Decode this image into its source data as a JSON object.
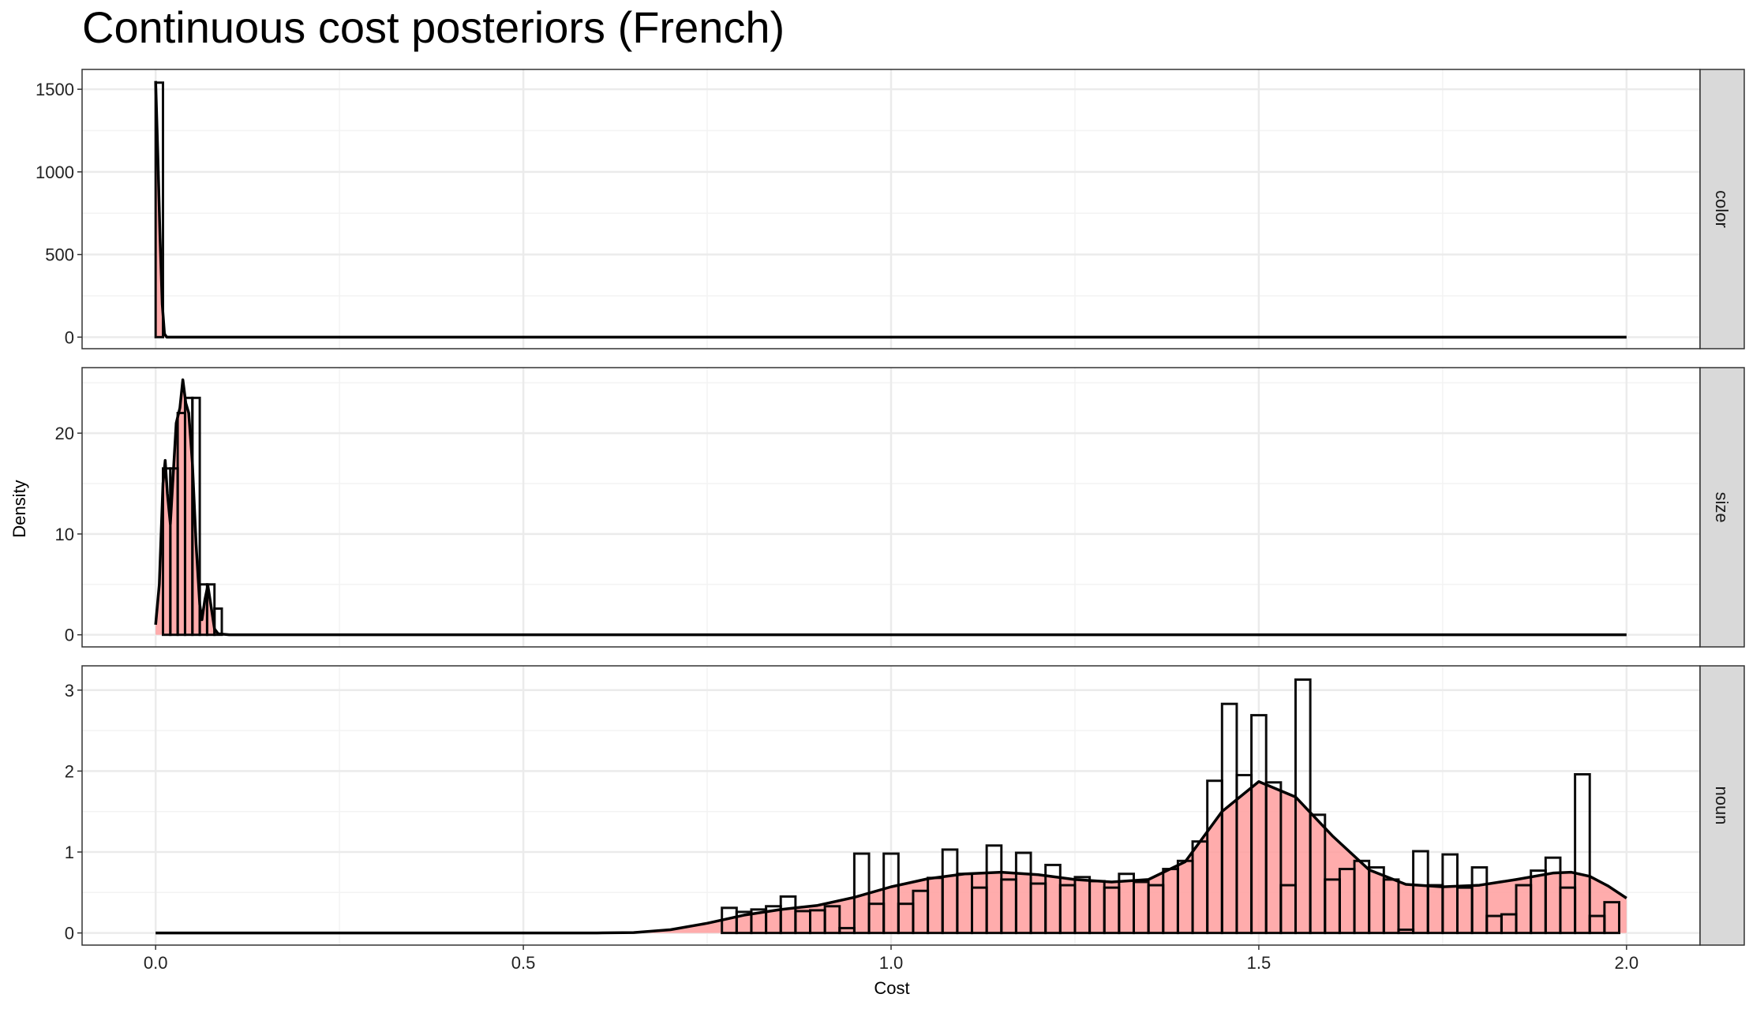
{
  "chart_data": {
    "type": "histogram-density",
    "title": "Continuous cost posteriors (French)",
    "xlabel": "Cost",
    "ylabel": "Density",
    "xlim": [
      -0.1,
      2.1
    ],
    "x_ticks": [
      0.0,
      0.5,
      1.0,
      1.5,
      2.0
    ],
    "x_tick_labels": [
      "0.0",
      "0.5",
      "1.0",
      "1.5",
      "2.0"
    ],
    "grid": true,
    "colors": {
      "fill": "#ff9e9e",
      "hist_outline": "#000000",
      "density_line": "#000000",
      "strip_bg": "#d9d9d9",
      "grid": "#ebebeb"
    },
    "facets": [
      {
        "label": "color",
        "ylim": [
          -70,
          1620
        ],
        "y_ticks": [
          0,
          500,
          1000,
          1500
        ],
        "y_tick_labels": [
          "0",
          "500",
          "1000",
          "1500"
        ],
        "bin_width": 0.01,
        "hist": [
          {
            "x": 0.0,
            "y": 1540
          }
        ],
        "density": [
          [
            0.0,
            1550
          ],
          [
            0.003,
            1100
          ],
          [
            0.006,
            600
          ],
          [
            0.009,
            200
          ],
          [
            0.012,
            20
          ],
          [
            0.015,
            0
          ],
          [
            2.0,
            0
          ]
        ]
      },
      {
        "label": "size",
        "ylim": [
          -1.2,
          26.5
        ],
        "y_ticks": [
          0,
          10,
          20
        ],
        "y_tick_labels": [
          "0",
          "10",
          "20"
        ],
        "bin_width": 0.01,
        "hist": [
          {
            "x": 0.01,
            "y": 16.5
          },
          {
            "x": 0.02,
            "y": 16.5
          },
          {
            "x": 0.03,
            "y": 22.0
          },
          {
            "x": 0.04,
            "y": 23.5
          },
          {
            "x": 0.05,
            "y": 23.5
          },
          {
            "x": 0.06,
            "y": 5.0
          },
          {
            "x": 0.07,
            "y": 5.0
          },
          {
            "x": 0.08,
            "y": 2.6
          }
        ],
        "density": [
          [
            0.0,
            1.0
          ],
          [
            0.005,
            5
          ],
          [
            0.01,
            15
          ],
          [
            0.013,
            17.3
          ],
          [
            0.016,
            14
          ],
          [
            0.02,
            11
          ],
          [
            0.024,
            16
          ],
          [
            0.028,
            21
          ],
          [
            0.033,
            22.5
          ],
          [
            0.037,
            25.3
          ],
          [
            0.041,
            23
          ],
          [
            0.045,
            22
          ],
          [
            0.05,
            17
          ],
          [
            0.055,
            9
          ],
          [
            0.06,
            3
          ],
          [
            0.063,
            1.5
          ],
          [
            0.067,
            3.5
          ],
          [
            0.071,
            4.9
          ],
          [
            0.075,
            3
          ],
          [
            0.08,
            0.6
          ],
          [
            0.085,
            0.1
          ],
          [
            0.1,
            0
          ],
          [
            2.0,
            0
          ]
        ]
      },
      {
        "label": "noun",
        "ylim": [
          -0.15,
          3.3
        ],
        "y_ticks": [
          0,
          1,
          2,
          3
        ],
        "y_tick_labels": [
          "0",
          "1",
          "2",
          "3"
        ],
        "bin_width": 0.02,
        "hist": [
          {
            "x": 0.77,
            "y": 0.31
          },
          {
            "x": 0.79,
            "y": 0.26
          },
          {
            "x": 0.81,
            "y": 0.29
          },
          {
            "x": 0.83,
            "y": 0.33
          },
          {
            "x": 0.85,
            "y": 0.45
          },
          {
            "x": 0.87,
            "y": 0.27
          },
          {
            "x": 0.89,
            "y": 0.28
          },
          {
            "x": 0.91,
            "y": 0.33
          },
          {
            "x": 0.93,
            "y": 0.06
          },
          {
            "x": 0.95,
            "y": 0.98
          },
          {
            "x": 0.97,
            "y": 0.36
          },
          {
            "x": 0.99,
            "y": 0.98
          },
          {
            "x": 1.01,
            "y": 0.36
          },
          {
            "x": 1.03,
            "y": 0.52
          },
          {
            "x": 1.05,
            "y": 0.68
          },
          {
            "x": 1.07,
            "y": 1.03
          },
          {
            "x": 1.09,
            "y": 0.73
          },
          {
            "x": 1.11,
            "y": 0.56
          },
          {
            "x": 1.13,
            "y": 1.08
          },
          {
            "x": 1.15,
            "y": 0.66
          },
          {
            "x": 1.17,
            "y": 0.99
          },
          {
            "x": 1.19,
            "y": 0.61
          },
          {
            "x": 1.21,
            "y": 0.84
          },
          {
            "x": 1.23,
            "y": 0.59
          },
          {
            "x": 1.25,
            "y": 0.69
          },
          {
            "x": 1.27,
            "y": 0.64
          },
          {
            "x": 1.29,
            "y": 0.56
          },
          {
            "x": 1.31,
            "y": 0.73
          },
          {
            "x": 1.33,
            "y": 0.63
          },
          {
            "x": 1.35,
            "y": 0.59
          },
          {
            "x": 1.37,
            "y": 0.79
          },
          {
            "x": 1.39,
            "y": 0.89
          },
          {
            "x": 1.41,
            "y": 1.13
          },
          {
            "x": 1.43,
            "y": 1.88
          },
          {
            "x": 1.45,
            "y": 2.83
          },
          {
            "x": 1.47,
            "y": 1.95
          },
          {
            "x": 1.49,
            "y": 2.69
          },
          {
            "x": 1.51,
            "y": 1.86
          },
          {
            "x": 1.53,
            "y": 0.59
          },
          {
            "x": 1.55,
            "y": 3.13
          },
          {
            "x": 1.57,
            "y": 1.46
          },
          {
            "x": 1.59,
            "y": 0.66
          },
          {
            "x": 1.61,
            "y": 0.79
          },
          {
            "x": 1.63,
            "y": 0.89
          },
          {
            "x": 1.65,
            "y": 0.81
          },
          {
            "x": 1.67,
            "y": 0.66
          },
          {
            "x": 1.69,
            "y": 0.04
          },
          {
            "x": 1.71,
            "y": 1.01
          },
          {
            "x": 1.73,
            "y": 0.59
          },
          {
            "x": 1.75,
            "y": 0.97
          },
          {
            "x": 1.77,
            "y": 0.56
          },
          {
            "x": 1.79,
            "y": 0.81
          },
          {
            "x": 1.81,
            "y": 0.21
          },
          {
            "x": 1.83,
            "y": 0.23
          },
          {
            "x": 1.85,
            "y": 0.59
          },
          {
            "x": 1.87,
            "y": 0.77
          },
          {
            "x": 1.89,
            "y": 0.93
          },
          {
            "x": 1.91,
            "y": 0.56
          },
          {
            "x": 1.93,
            "y": 1.96
          },
          {
            "x": 1.95,
            "y": 0.21
          },
          {
            "x": 1.97,
            "y": 0.38
          }
        ],
        "density": [
          [
            0.0,
            0
          ],
          [
            0.6,
            0
          ],
          [
            0.65,
            0.005
          ],
          [
            0.7,
            0.04
          ],
          [
            0.75,
            0.12
          ],
          [
            0.8,
            0.22
          ],
          [
            0.85,
            0.29
          ],
          [
            0.9,
            0.34
          ],
          [
            0.95,
            0.44
          ],
          [
            1.0,
            0.57
          ],
          [
            1.05,
            0.67
          ],
          [
            1.1,
            0.73
          ],
          [
            1.15,
            0.75
          ],
          [
            1.2,
            0.72
          ],
          [
            1.25,
            0.66
          ],
          [
            1.3,
            0.63
          ],
          [
            1.35,
            0.66
          ],
          [
            1.4,
            0.88
          ],
          [
            1.45,
            1.5
          ],
          [
            1.5,
            1.87
          ],
          [
            1.55,
            1.68
          ],
          [
            1.6,
            1.2
          ],
          [
            1.65,
            0.78
          ],
          [
            1.7,
            0.6
          ],
          [
            1.75,
            0.57
          ],
          [
            1.8,
            0.59
          ],
          [
            1.85,
            0.66
          ],
          [
            1.9,
            0.74
          ],
          [
            1.925,
            0.75
          ],
          [
            1.95,
            0.7
          ],
          [
            1.975,
            0.58
          ],
          [
            2.0,
            0.43
          ]
        ]
      }
    ]
  }
}
